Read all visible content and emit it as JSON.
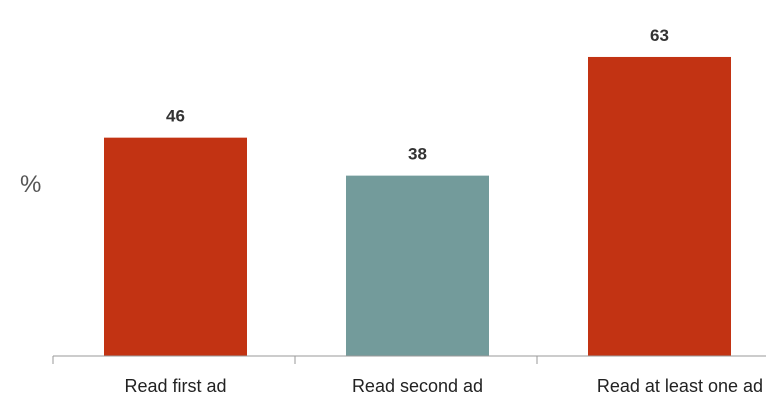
{
  "chart_data": {
    "type": "bar",
    "categories": [
      "Read first ad",
      "Read second ad",
      "Read at least one ad"
    ],
    "values": [
      46,
      38,
      63
    ],
    "value_labels": [
      "46",
      "38",
      "63"
    ],
    "colors": [
      "#c23313",
      "#739b9b",
      "#c23313"
    ],
    "title": "",
    "xlabel": "",
    "ylabel": "%",
    "ylim": [
      0,
      75
    ],
    "grid": false,
    "legend": "none"
  }
}
